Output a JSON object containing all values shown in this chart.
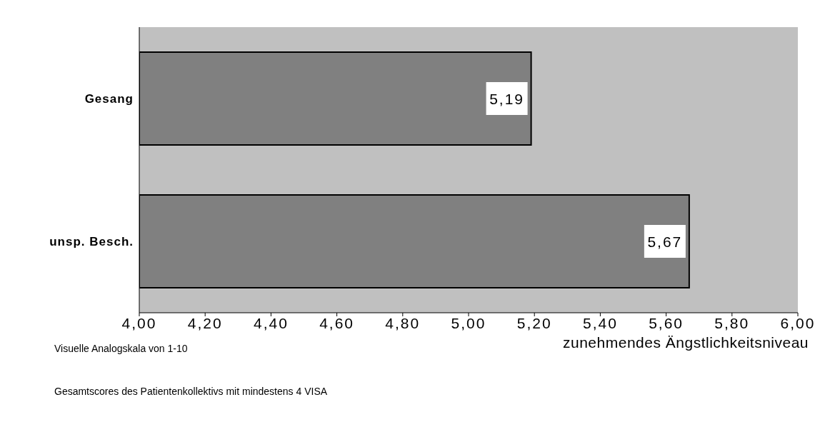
{
  "chart_data": {
    "type": "bar",
    "orientation": "horizontal",
    "categories": [
      "Gesang",
      "unsp.  Besch."
    ],
    "values": [
      5.19,
      5.67
    ],
    "value_labels": [
      "5,19",
      "5,67"
    ],
    "color": "#808080",
    "xlim": [
      4,
      6
    ],
    "xticks": [
      {
        "value": 4,
        "label": "4,00"
      },
      {
        "value": 4.2,
        "label": "4,20"
      },
      {
        "value": 4.4,
        "label": "4,40"
      },
      {
        "value": 4.6,
        "label": "4,60"
      },
      {
        "value": 4.8,
        "label": "4,80"
      },
      {
        "value": 5,
        "label": "5,00"
      },
      {
        "value": 5.2,
        "label": "5,20"
      },
      {
        "value": 5.4,
        "label": "5,40"
      },
      {
        "value": 5.6,
        "label": "5,60"
      },
      {
        "value": 5.8,
        "label": "5,80"
      },
      {
        "value": 6,
        "label": "6,00"
      }
    ],
    "xlabel": "zunehmendes Ängstlichkeitsniveau",
    "annotations": [
      "Visuelle Analogskala von 1-10",
      "Gesamtscores des Patientenkollektivs mit mindestens 4 VISA"
    ],
    "grid": false,
    "legend": false
  }
}
